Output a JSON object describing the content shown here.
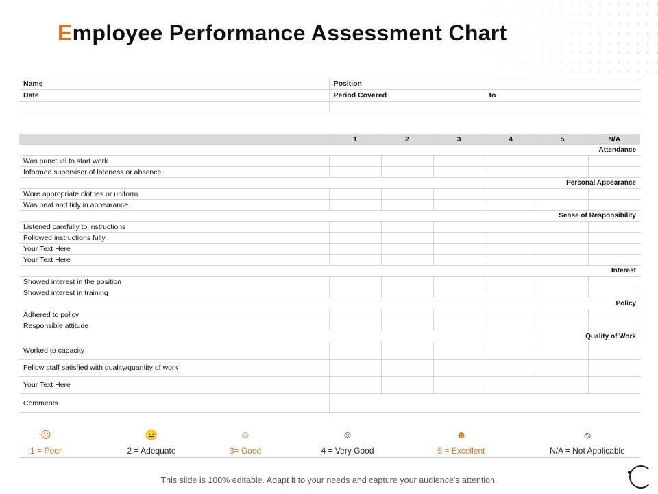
{
  "title": {
    "first_letter": "E",
    "rest": "mployee Performance Assessment Chart",
    "accent": "#d4731e"
  },
  "info": {
    "name": "Name",
    "position": "Position",
    "date": "Date",
    "period": "Period Covered",
    "to": "to"
  },
  "headers": [
    "1",
    "2",
    "3",
    "4",
    "5",
    "N/A"
  ],
  "sections": [
    {
      "title": "Attendance",
      "items": [
        "Was punctual to start work",
        "Informed supervisor of lateness or absence"
      ]
    },
    {
      "title": "Personal Appearance",
      "items": [
        "Wore appropriate clothes or uniform",
        "Was neat and tidy in appearance"
      ]
    },
    {
      "title": "Sense of Responsibility",
      "items": [
        "Listened carefully to instructions",
        "Followed instructions fully",
        "Your Text Here",
        "Your Text Here"
      ]
    },
    {
      "title": "Interest",
      "items": [
        "Showed interest in the position",
        "Showed interest in training"
      ]
    },
    {
      "title": "Policy",
      "items": [
        "Adhered to policy",
        "Responsible attitude"
      ]
    },
    {
      "title": "Quality of Work",
      "items": [
        "Worked to capacity",
        "Fellow staff satisfied with quality/quantity of work",
        "Your Text Here"
      ]
    }
  ],
  "comments": "Comments",
  "legend": [
    {
      "icon": "frown-face-icon",
      "glyph": "☹",
      "label": "1 = Poor",
      "color": "#d4731e"
    },
    {
      "icon": "neutral-face-icon",
      "glyph": "😐",
      "label": "2 = Adequate",
      "color": "#222222"
    },
    {
      "icon": "smile-face-icon",
      "glyph": "☺",
      "label": "3= Good",
      "color": "#d4731e"
    },
    {
      "icon": "smile-face-icon",
      "glyph": "☺",
      "label": "4 = Very Good",
      "color": "#222222"
    },
    {
      "icon": "grin-face-icon",
      "glyph": "☻",
      "label": "5 = Excellent",
      "color": "#d4731e"
    },
    {
      "icon": "prohibited-icon",
      "glyph": "⦸",
      "label": "N/A = Not Applicable",
      "color": "#222222"
    }
  ],
  "footer": "This slide is 100% editable. Adapt it to your needs and capture your audience's attention."
}
